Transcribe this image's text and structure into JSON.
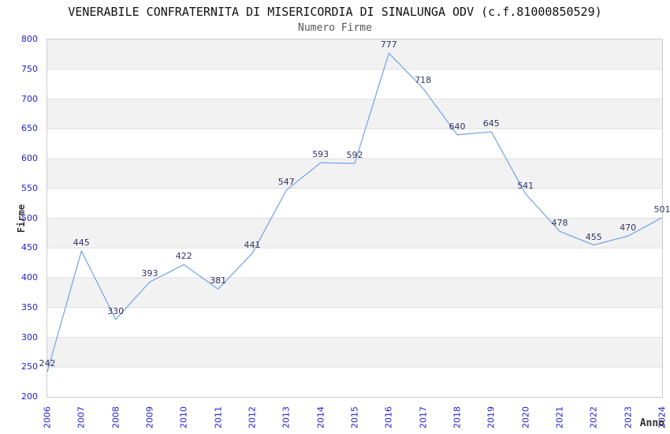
{
  "chart_data": {
    "type": "line",
    "title": "VENERABILE CONFRATERNITA DI MISERICORDIA DI SINALUNGA ODV (c.f.81000850529)",
    "subtitle": "Numero Firme",
    "xlabel": "Anno",
    "ylabel": "Firme",
    "categories": [
      "2006",
      "2007",
      "2008",
      "2009",
      "2010",
      "2011",
      "2012",
      "2013",
      "2014",
      "2015",
      "2016",
      "2017",
      "2018",
      "2019",
      "2020",
      "2021",
      "2022",
      "2023",
      "2024"
    ],
    "values": [
      242,
      445,
      330,
      393,
      422,
      381,
      441,
      547,
      593,
      592,
      777,
      718,
      640,
      645,
      541,
      478,
      455,
      470,
      501
    ],
    "series_name": "Numero Firme",
    "ylim": [
      200,
      800
    ],
    "ytick_step": 50,
    "grid": "horizontal-alternating-bands",
    "legend": "none",
    "data_labels": "shown-above-points",
    "colors": {
      "line": "#7aa9e8",
      "tick_label": "#2222cc",
      "data_label": "#333366",
      "band_gray": "#f2f2f2",
      "band_white": "#ffffff",
      "gridline": "#e0e0e0",
      "plot_border": "#cccccc",
      "title": "#111111",
      "subtitle": "#555555",
      "axis_label": "#333333",
      "background": "#ffffff"
    }
  }
}
